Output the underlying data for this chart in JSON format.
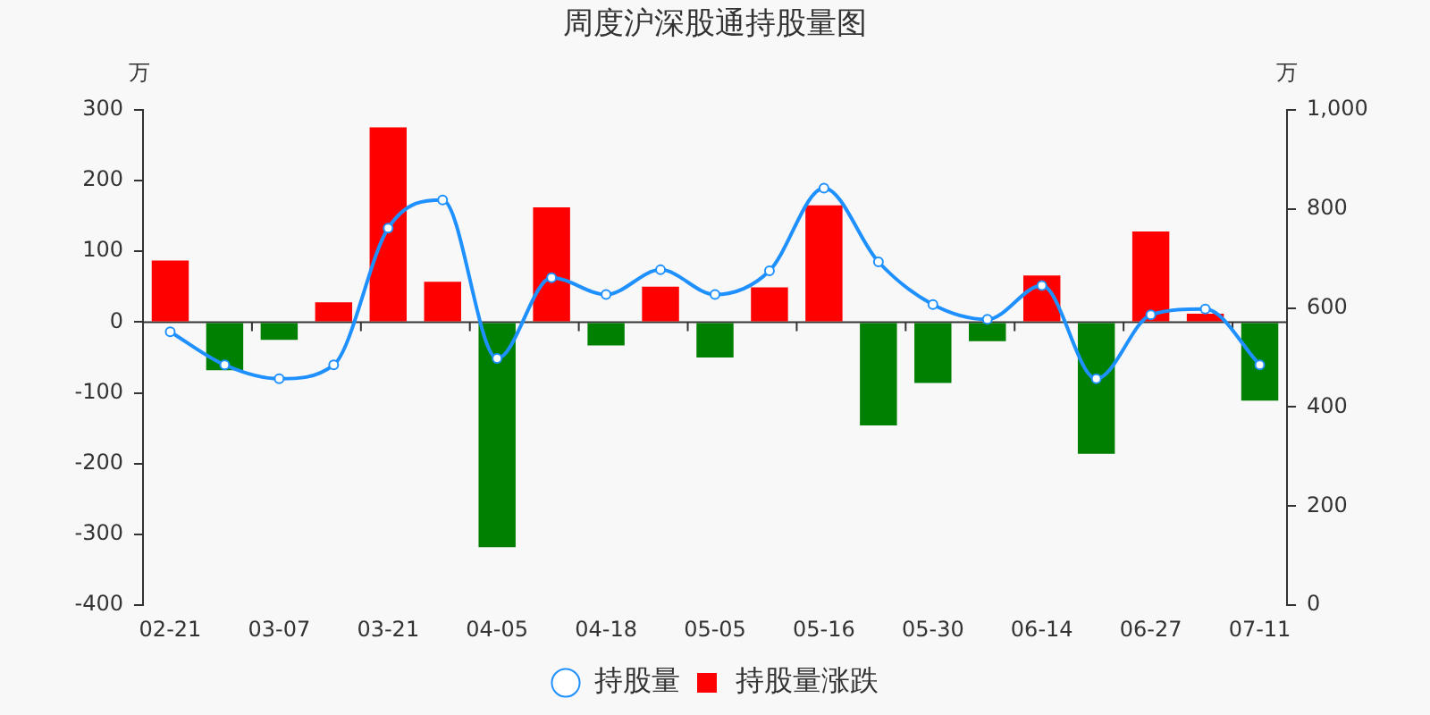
{
  "chart_data": {
    "type": "bar",
    "title": "周度沪深股通持股量图",
    "ylabel": "万",
    "y2label": "万",
    "categories": [
      "02-21",
      null,
      "03-07",
      null,
      "03-21",
      null,
      "04-05",
      null,
      "04-18",
      null,
      "05-05",
      null,
      "05-16",
      null,
      "05-30",
      null,
      "06-14",
      null,
      "06-27",
      null,
      "07-11"
    ],
    "series": [
      {
        "name": "持股量",
        "type": "line",
        "axis": "y2",
        "color": "#1e90ff",
        "values": [
          552,
          485,
          457,
          485,
          761,
          818,
          498,
          661,
          627,
          677,
          627,
          675,
          842,
          693,
          607,
          577,
          645,
          457,
          586,
          598,
          485
        ]
      },
      {
        "name": "持股量涨跌",
        "type": "bar",
        "color": "#ff0000",
        "colors": [
          "#ff0000",
          "#008000",
          "#008000",
          "#ff0000",
          "#ff0000",
          "#ff0000",
          "#008000",
          "#ff0000",
          "#008000",
          "#ff0000",
          "#008000",
          "#ff0000",
          "#ff0000",
          "#008000",
          "#008000",
          "#008000",
          "#ff0000",
          "#008000",
          "#ff0000",
          "#ff0000",
          "#008000"
        ],
        "values": [
          87,
          -68,
          -25,
          28,
          275,
          57,
          -318,
          162,
          -33,
          50,
          -50,
          49,
          165,
          -146,
          -86,
          -27,
          66,
          -186,
          128,
          12,
          -111
        ]
      }
    ],
    "ylim": [
      -400,
      300
    ],
    "yticks": [
      -400,
      -300,
      -200,
      -100,
      0,
      100,
      200,
      300
    ],
    "y2lim": [
      0,
      1000
    ],
    "y2ticks": [
      0,
      200,
      400,
      600,
      800,
      {
        "value": 1000,
        "label": "1,000"
      }
    ],
    "legend": "bottom",
    "marker": "circle"
  }
}
